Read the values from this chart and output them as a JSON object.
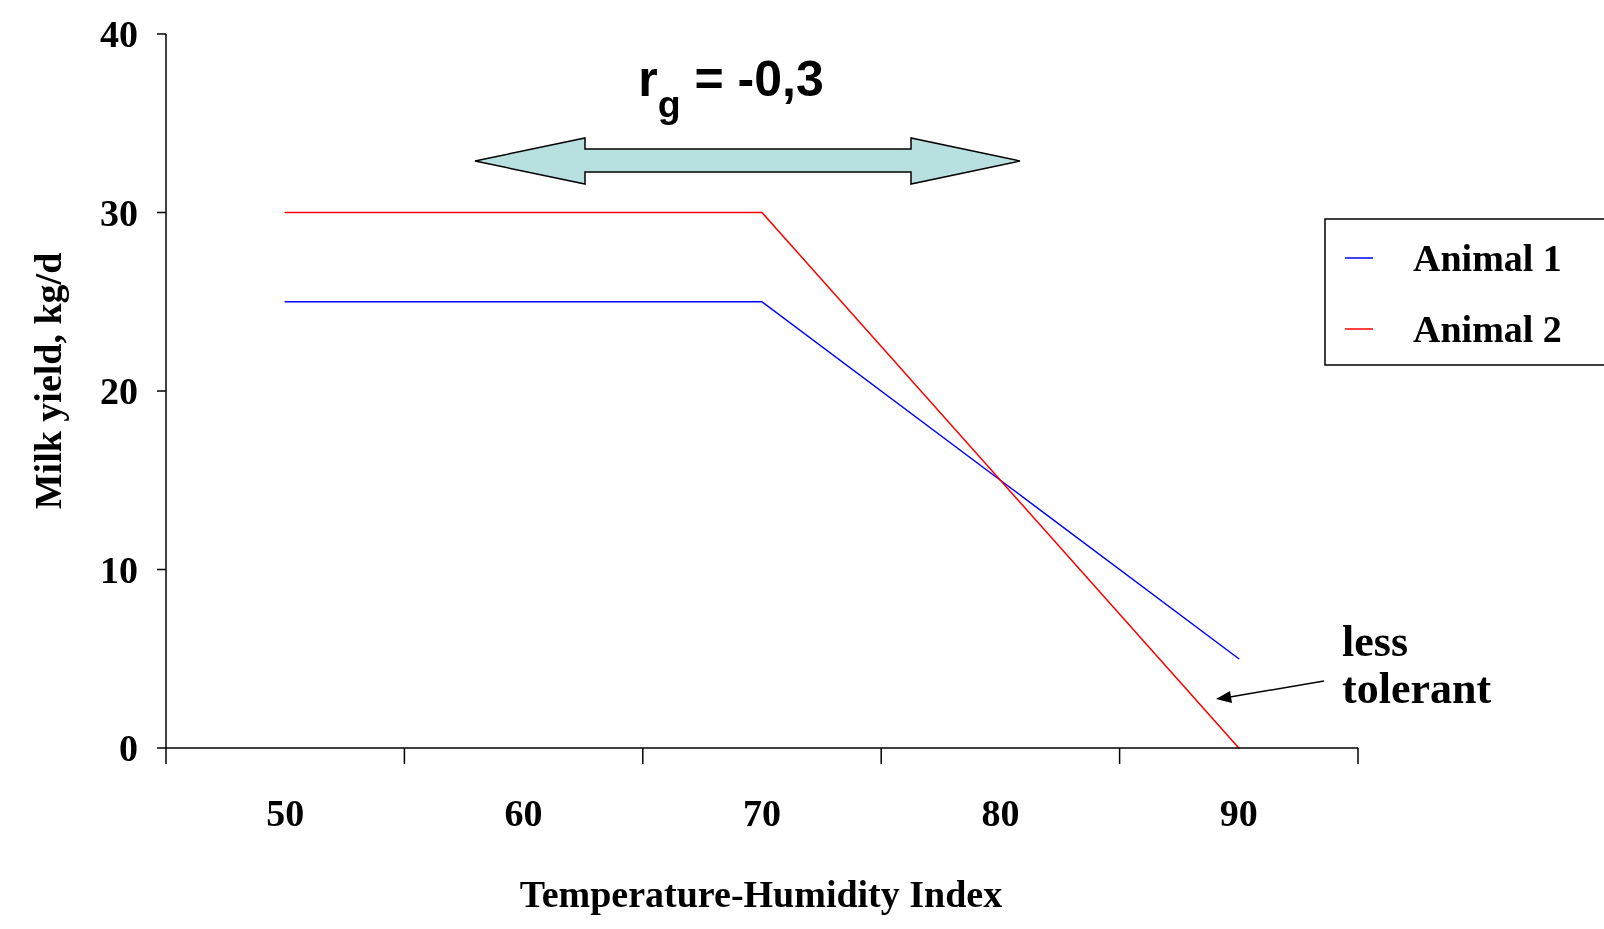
{
  "chart_data": {
    "type": "line",
    "xlabel": "Temperature-Humidity Index",
    "ylabel": "Milk yield, kg/d",
    "categories": [
      "50",
      "60",
      "70",
      "80",
      "90"
    ],
    "series": [
      {
        "name": "Animal 1",
        "color": "#0000ff",
        "values": [
          25,
          25,
          25,
          15,
          5
        ]
      },
      {
        "name": "Animal 2",
        "color": "#ff0000",
        "values": [
          30,
          30,
          30,
          15,
          0
        ]
      }
    ],
    "ylim": [
      0,
      40
    ],
    "yticks": [
      0,
      10,
      20,
      30,
      40
    ],
    "grid": false,
    "legend": "right",
    "marker": "none",
    "line_style": "solid",
    "annotations": [
      "r$_{g}$ = -0,3",
      "less tolerant"
    ]
  }
}
